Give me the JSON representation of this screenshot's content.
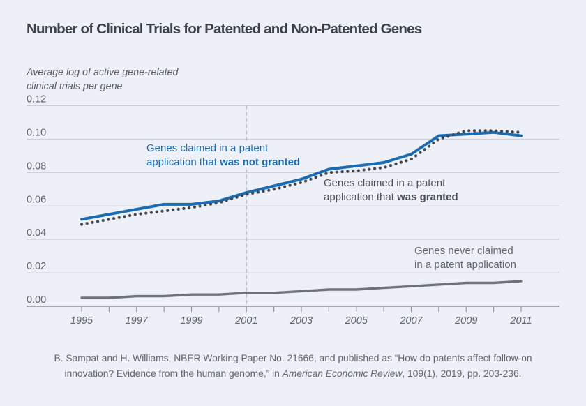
{
  "page": {
    "title": "Number of Clinical Trials for Patented and Non-Patented Genes",
    "background_color": "#edf1f7",
    "accent_color": "#1a6cb2"
  },
  "chart_data": {
    "type": "line",
    "title": "Number of Clinical Trials for Patented and Non-Patented Genes",
    "ylabel": "Average log of active gene-related\nclinical trials per gene",
    "xlabel": "",
    "grid": true,
    "ylim": [
      0,
      0.12
    ],
    "y_ticks": [
      "0.12",
      "0.10",
      "0.08",
      "0.06",
      "0.04",
      "0.02",
      "0.00"
    ],
    "x": [
      1995,
      1996,
      1997,
      1998,
      1999,
      2000,
      2001,
      2002,
      2003,
      2004,
      2005,
      2006,
      2007,
      2008,
      2009,
      2010,
      2011
    ],
    "x_tick_labels": [
      "1995",
      "1997",
      "1999",
      "2001",
      "2003",
      "2005",
      "2007",
      "2009",
      "2011"
    ],
    "reference_line_x": 2001,
    "series": [
      {
        "id": "never-claimed",
        "name": "Genes never claimed in a patent application",
        "style": "solid",
        "color": "#6e737a",
        "width": 3.4,
        "values": [
          0.005,
          0.005,
          0.006,
          0.006,
          0.007,
          0.007,
          0.008,
          0.008,
          0.009,
          0.01,
          0.01,
          0.011,
          0.012,
          0.013,
          0.014,
          0.014,
          0.015
        ]
      },
      {
        "id": "not-granted",
        "name": "Genes claimed in a patent application that was not granted",
        "style": "solid",
        "color": "#1a6cb2",
        "width": 4,
        "values": [
          0.052,
          0.055,
          0.058,
          0.061,
          0.061,
          0.063,
          0.068,
          0.072,
          0.076,
          0.082,
          0.084,
          0.086,
          0.091,
          0.102,
          0.103,
          0.104,
          0.102
        ]
      },
      {
        "id": "granted",
        "name": "Genes claimed in a patent application that was granted",
        "style": "dotted",
        "color": "#42484e",
        "width": 4.2,
        "values": [
          0.049,
          0.052,
          0.055,
          0.057,
          0.059,
          0.062,
          0.067,
          0.07,
          0.074,
          0.08,
          0.081,
          0.083,
          0.088,
          0.1,
          0.105,
          0.105,
          0.104
        ]
      }
    ]
  },
  "annotations": {
    "not_granted": {
      "text": "Genes claimed in a patent\napplication that ",
      "bold": "was not granted"
    },
    "granted": {
      "text": "Genes claimed in a patent\napplication that ",
      "bold": "was granted"
    },
    "never_claimed": {
      "text": "Genes never claimed\nin a patent application"
    }
  },
  "caption": {
    "part1": "B. Sampat and H. Williams, NBER Working Paper No. 21666, and published as “How do patents affect follow-on innovation? Evidence from the human genome,” in ",
    "italic": "American Economic Review",
    "part2": ", 109(1), 2019, pp. 203-236."
  }
}
